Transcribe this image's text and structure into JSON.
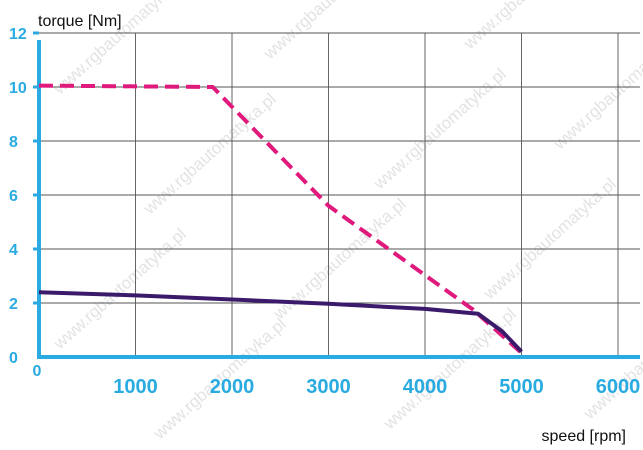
{
  "chart_data": {
    "type": "line",
    "title": "",
    "xlabel": "speed [rpm]",
    "ylabel": "torque [Nm]",
    "xlim": [
      0,
      6000
    ],
    "ylim": [
      0,
      12
    ],
    "x_ticks": [
      0,
      1000,
      2000,
      3000,
      4000,
      5000,
      6000
    ],
    "y_ticks": [
      0,
      2,
      4,
      6,
      8,
      10,
      12
    ],
    "grid": true,
    "series": [
      {
        "style": "dashed",
        "color": "#e0197d",
        "points": [
          [
            0,
            10.05
          ],
          [
            1800,
            10.0
          ],
          [
            3000,
            5.6
          ],
          [
            4500,
            1.75
          ],
          [
            5000,
            0.15
          ]
        ]
      },
      {
        "style": "solid",
        "color": "#3b1a6b",
        "points": [
          [
            0,
            2.4
          ],
          [
            1000,
            2.28
          ],
          [
            2000,
            2.13
          ],
          [
            3000,
            1.97
          ],
          [
            4000,
            1.78
          ],
          [
            4550,
            1.6
          ],
          [
            4800,
            0.95
          ],
          [
            5000,
            0.2
          ]
        ]
      }
    ]
  },
  "watermark": "www.rgbautomatyka.pl",
  "colors": {
    "axis": "#29abe2",
    "grid": "#555555",
    "tick_label": "#29abe2"
  }
}
